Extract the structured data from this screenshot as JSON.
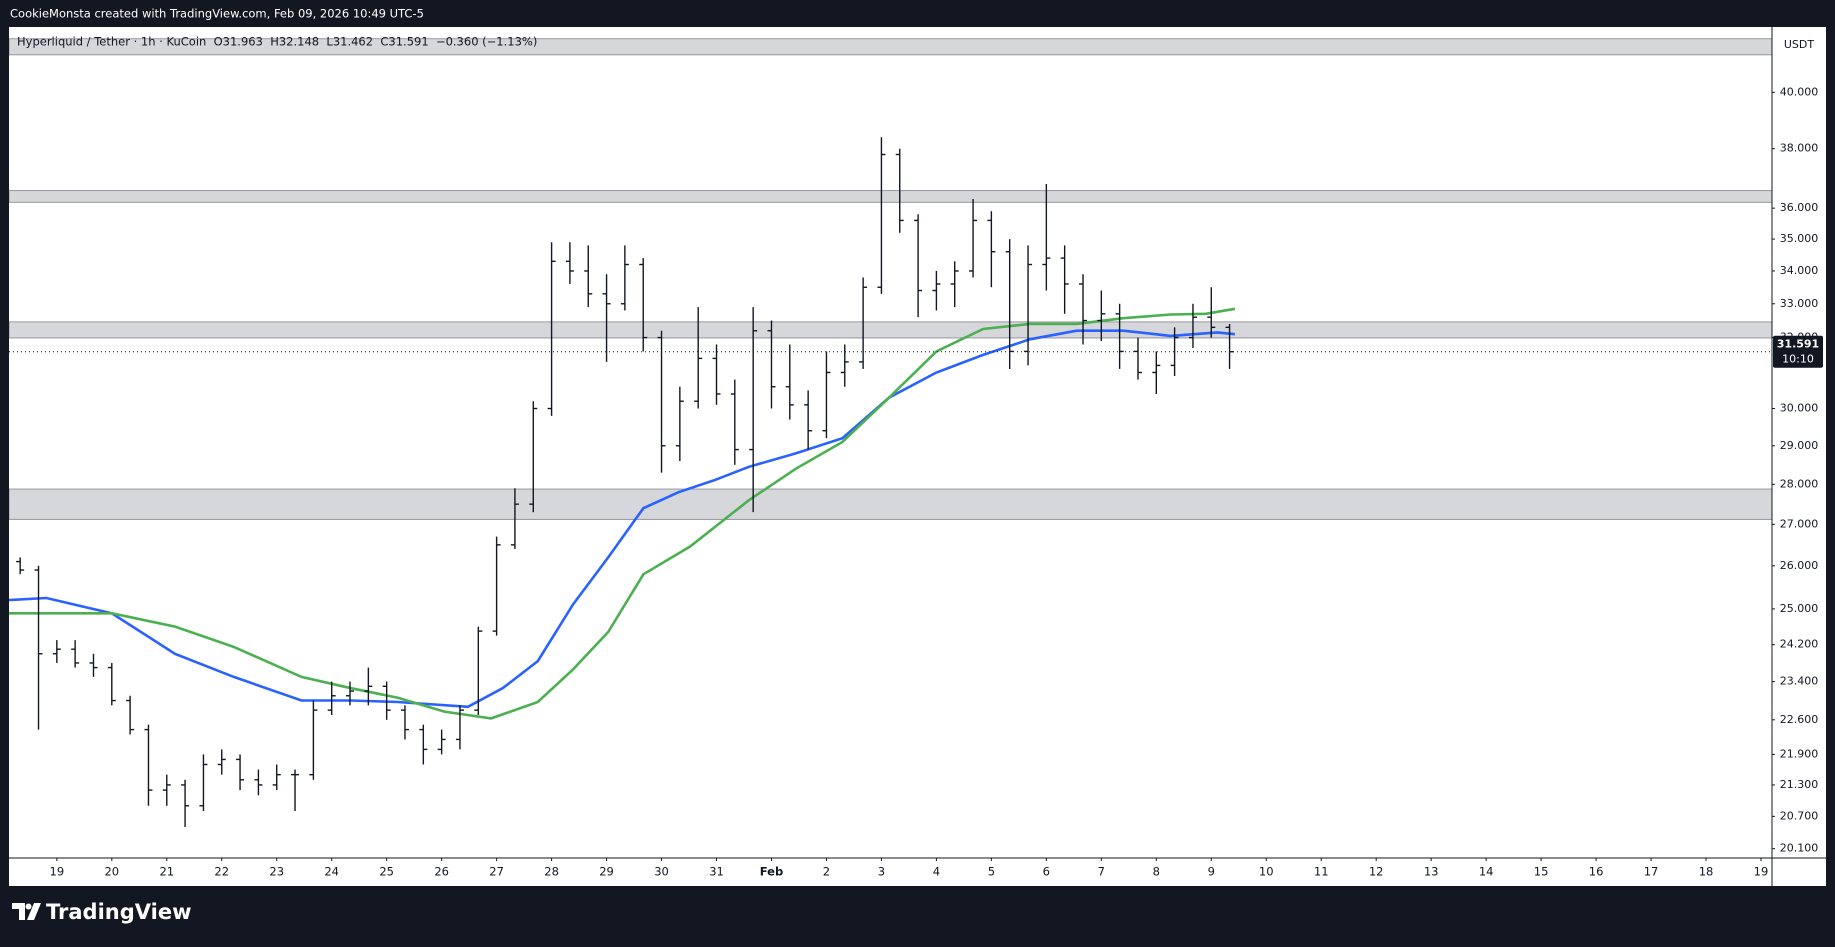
{
  "header": {
    "watermark": "CookieMonsta created with TradingView.com, Feb 09, 2026 10:49 UTC-5"
  },
  "footer": {
    "brand": "TradingView"
  },
  "chart_data": {
    "type": "ohlc",
    "title": "Hyperliquid / Tether · 1h · KuCoin  O31.963  H32.148  L31.462  C31.591  −0.360 (−1.13%)",
    "currency": "USDT",
    "color": "#131722",
    "log_scale": true,
    "grid": false,
    "xlim": [
      18.13,
      50.2
    ],
    "ylim": [
      19.93,
      42.45
    ],
    "xticks": [
      19,
      20,
      21,
      22,
      23,
      24,
      25,
      26,
      27,
      28,
      29,
      30,
      31,
      {
        "value": 32,
        "label": "Feb"
      },
      {
        "value": 33,
        "label": "2"
      },
      {
        "value": 34,
        "label": "3"
      },
      {
        "value": 35,
        "label": "4"
      },
      {
        "value": 36,
        "label": "5"
      },
      {
        "value": 37,
        "label": "6"
      },
      {
        "value": 38,
        "label": "7"
      },
      {
        "value": 39,
        "label": "8"
      },
      {
        "value": 40,
        "label": "9"
      },
      {
        "value": 41,
        "label": "10"
      },
      {
        "value": 42,
        "label": "11"
      },
      {
        "value": 43,
        "label": "12"
      },
      {
        "value": 44,
        "label": "13"
      },
      {
        "value": 45,
        "label": "14"
      },
      {
        "value": 46,
        "label": "15"
      },
      {
        "value": 47,
        "label": "16"
      },
      {
        "value": 48,
        "label": "17"
      },
      {
        "value": 49,
        "label": "18"
      },
      {
        "value": 50,
        "label": "19"
      }
    ],
    "yticks": [
      {
        "value": 40,
        "label": "40.000"
      },
      {
        "value": 38,
        "label": "38.000"
      },
      {
        "value": 36,
        "label": "36.000"
      },
      {
        "value": 35,
        "label": "35.000"
      },
      {
        "value": 34,
        "label": "34.000"
      },
      {
        "value": 33,
        "label": "33.000"
      },
      {
        "value": 32,
        "label": "32.000"
      },
      {
        "value": 30,
        "label": "30.000"
      },
      {
        "value": 29,
        "label": "29.000"
      },
      {
        "value": 28,
        "label": "28.000"
      },
      {
        "value": 27,
        "label": "27.000"
      },
      {
        "value": 26,
        "label": "26.000"
      },
      {
        "value": 25,
        "label": "25.000"
      },
      {
        "value": 24.2,
        "label": "24.200"
      },
      {
        "value": 23.4,
        "label": "23.400"
      },
      {
        "value": 22.6,
        "label": "22.600"
      },
      {
        "value": 21.9,
        "label": "21.900"
      },
      {
        "value": 21.3,
        "label": "21.300"
      },
      {
        "value": 20.7,
        "label": "20.700"
      },
      {
        "value": 20.1,
        "label": "20.100"
      }
    ],
    "x": [
      18.333,
      18.667,
      19,
      19.333,
      19.667,
      20,
      20.333,
      20.667,
      21,
      21.333,
      21.667,
      22,
      22.333,
      22.667,
      23,
      23.333,
      23.667,
      24,
      24.333,
      24.667,
      25,
      25.333,
      25.667,
      26,
      26.333,
      26.667,
      27,
      27.333,
      27.667,
      28,
      28.333,
      28.667,
      29,
      29.333,
      29.667,
      30,
      30.333,
      30.667,
      31,
      31.333,
      31.667,
      32,
      32.333,
      32.667,
      33,
      33.333,
      33.667,
      34,
      34.333,
      34.667,
      35,
      35.333,
      35.667,
      36,
      36.333,
      36.667,
      37,
      37.333,
      37.667,
      38,
      38.333,
      38.667,
      39,
      39.333,
      39.667,
      40,
      40.333
    ],
    "open": [
      26.1,
      25.9,
      24.0,
      24.1,
      23.8,
      23.7,
      23.0,
      22.4,
      21.2,
      21.3,
      20.9,
      21.7,
      21.8,
      21.4,
      21.3,
      21.5,
      21.5,
      22.8,
      23.1,
      23.2,
      23.3,
      22.8,
      22.4,
      22.0,
      22.2,
      22.8,
      24.5,
      26.5,
      27.5,
      30.0,
      34.3,
      34.0,
      33.3,
      33.0,
      34.2,
      32.0,
      29.0,
      30.2,
      31.4,
      30.4,
      28.9,
      32.2,
      30.6,
      30.1,
      29.4,
      31.0,
      31.3,
      33.5,
      37.8,
      35.6,
      33.4,
      33.6,
      34.0,
      35.6,
      34.6,
      31.6,
      34.2,
      34.4,
      33.6,
      32.5,
      32.7,
      31.6,
      31.0,
      31.2,
      32.0,
      32.6,
      32.3
    ],
    "high": [
      26.2,
      26.0,
      24.3,
      24.3,
      24.0,
      23.8,
      23.1,
      22.5,
      21.5,
      21.4,
      21.9,
      22.0,
      21.9,
      21.6,
      21.7,
      21.6,
      23.0,
      23.4,
      23.4,
      23.7,
      23.4,
      22.9,
      22.5,
      22.4,
      22.9,
      24.6,
      26.7,
      27.9,
      30.2,
      34.9,
      34.9,
      34.8,
      33.9,
      34.8,
      34.4,
      32.2,
      30.6,
      32.9,
      31.8,
      30.8,
      32.9,
      32.5,
      31.8,
      30.5,
      31.6,
      31.8,
      33.8,
      38.4,
      38.0,
      35.8,
      34.0,
      34.3,
      36.3,
      35.9,
      35.0,
      34.8,
      36.8,
      34.8,
      33.9,
      33.4,
      33.0,
      32.0,
      31.6,
      32.3,
      33.0,
      33.5,
      32.4
    ],
    "low": [
      25.8,
      22.4,
      23.8,
      23.7,
      23.5,
      22.9,
      22.3,
      20.9,
      20.9,
      20.5,
      20.8,
      21.5,
      21.2,
      21.1,
      21.2,
      20.8,
      21.4,
      22.7,
      22.9,
      22.9,
      22.6,
      22.2,
      21.7,
      21.9,
      22.0,
      22.7,
      24.4,
      26.4,
      27.3,
      29.8,
      33.6,
      32.9,
      31.3,
      32.8,
      31.6,
      28.3,
      28.6,
      30.0,
      30.1,
      28.5,
      27.3,
      30.0,
      29.7,
      28.9,
      29.2,
      30.6,
      31.1,
      33.3,
      35.2,
      32.6,
      32.8,
      32.9,
      33.8,
      33.5,
      31.1,
      31.2,
      33.4,
      32.7,
      31.8,
      31.9,
      31.1,
      30.8,
      30.4,
      30.9,
      31.7,
      32.0,
      31.1
    ],
    "close": [
      25.9,
      24.0,
      24.1,
      23.8,
      23.7,
      23.0,
      22.4,
      21.2,
      21.3,
      20.9,
      21.7,
      21.8,
      21.4,
      21.3,
      21.5,
      21.5,
      22.8,
      23.1,
      23.2,
      23.3,
      22.8,
      22.4,
      22.0,
      22.2,
      22.8,
      24.5,
      26.5,
      27.5,
      30.0,
      34.3,
      34.0,
      33.3,
      33.0,
      34.2,
      32.0,
      29.0,
      30.2,
      31.4,
      30.4,
      28.9,
      32.2,
      30.6,
      30.1,
      29.4,
      31.0,
      31.3,
      33.5,
      37.8,
      35.6,
      33.4,
      33.6,
      34.0,
      35.6,
      34.6,
      31.6,
      34.2,
      34.4,
      33.6,
      32.5,
      32.7,
      31.6,
      31.0,
      31.2,
      32.0,
      32.6,
      32.3,
      31.591
    ],
    "lines": [
      {
        "color": "#2962ff",
        "x": [
          18.13,
          18.81,
          20.0,
          21.15,
          22.22,
          23.45,
          24.35,
          25.2,
          26.48,
          27.11,
          27.75,
          28.39,
          29.03,
          29.67,
          30.31,
          30.95,
          31.59,
          32.44,
          33.29,
          34.14,
          35.0,
          35.85,
          36.7,
          37.55,
          38.4,
          39.26,
          40.11,
          40.43
        ],
        "values": [
          25.2,
          25.25,
          24.9,
          24.0,
          23.5,
          23.0,
          23.0,
          22.97,
          22.87,
          23.26,
          23.84,
          25.1,
          26.2,
          27.4,
          27.8,
          28.1,
          28.45,
          28.8,
          29.2,
          30.3,
          31.0,
          31.5,
          31.95,
          32.2,
          32.2,
          32.05,
          32.15,
          32.1
        ]
      },
      {
        "color": "#4caf50",
        "x": [
          18.13,
          20.0,
          21.15,
          22.22,
          23.45,
          24.35,
          25.2,
          26.05,
          26.9,
          27.75,
          28.39,
          29.03,
          29.67,
          30.52,
          31.59,
          32.44,
          33.29,
          34.14,
          35.0,
          35.85,
          36.7,
          37.55,
          38.4,
          39.26,
          39.9,
          40.43
        ],
        "values": [
          24.9,
          24.9,
          24.6,
          24.15,
          23.5,
          23.26,
          23.06,
          22.77,
          22.63,
          22.97,
          23.66,
          24.48,
          25.8,
          26.46,
          27.6,
          28.4,
          29.1,
          30.3,
          31.6,
          32.25,
          32.4,
          32.4,
          32.57,
          32.68,
          32.7,
          32.85
        ]
      }
    ],
    "zones": [
      {
        "low": 41.39,
        "high": 42.0
      },
      {
        "low": 36.19,
        "high": 36.58
      },
      {
        "low": 31.99,
        "high": 32.46
      },
      {
        "low": 27.12,
        "high": 27.88
      }
    ],
    "zone_color": "#d6d7db",
    "last_price": 31.591,
    "countdown": "10:10"
  }
}
